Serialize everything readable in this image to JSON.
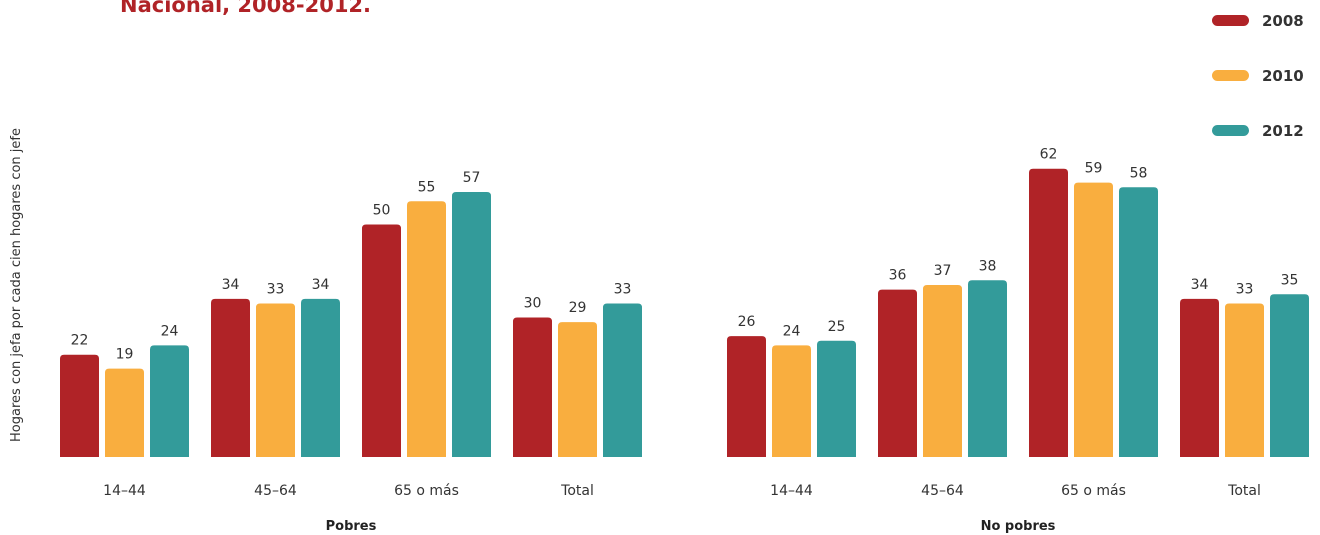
{
  "title_lines": [
    "",
    "Nacional, 2008-2012."
  ],
  "colors": {
    "2008": "#B02327",
    "2010": "#F9AE3F",
    "2012": "#339B9A"
  },
  "chart_data": {
    "type": "bar",
    "ylabel": "Hogares con jefa por cada cien hogares con jefe",
    "series_names": [
      "2008",
      "2010",
      "2012"
    ],
    "legend_position": "top-right",
    "grid": false,
    "ylim": [
      0,
      70
    ],
    "panels": [
      {
        "group_label": "Pobres",
        "categories": [
          "14–44",
          "45–64",
          "65 o más",
          "Total"
        ],
        "series": [
          {
            "name": "2008",
            "values": [
              22,
              34,
              50,
              30
            ]
          },
          {
            "name": "2010",
            "values": [
              19,
              33,
              55,
              29
            ]
          },
          {
            "name": "2012",
            "values": [
              24,
              34,
              57,
              33
            ]
          }
        ]
      },
      {
        "group_label": "No pobres",
        "categories": [
          "14–44",
          "45–64",
          "65 o más",
          "Total"
        ],
        "series": [
          {
            "name": "2008",
            "values": [
              26,
              36,
              62,
              34
            ]
          },
          {
            "name": "2010",
            "values": [
              24,
              37,
              59,
              33
            ]
          },
          {
            "name": "2012",
            "values": [
              25,
              38,
              58,
              35
            ]
          }
        ]
      }
    ]
  }
}
